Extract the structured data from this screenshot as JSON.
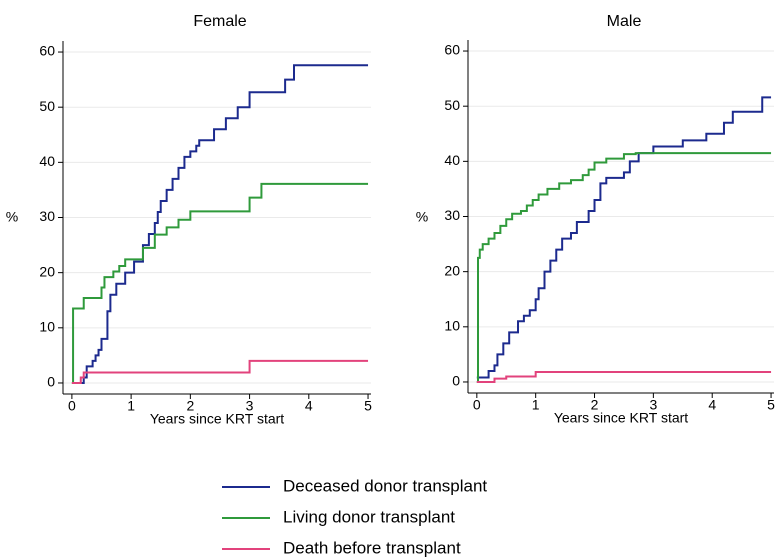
{
  "chart_data": [
    {
      "type": "step",
      "title": "Female",
      "x_label": "Years since KRT start",
      "y_label": "%",
      "xlim": [
        -0.15,
        5.05
      ],
      "ylim": [
        -2,
        62
      ],
      "xticks": [
        0,
        1,
        2,
        3,
        4,
        5
      ],
      "yticks": [
        0,
        10,
        20,
        30,
        40,
        50,
        60
      ],
      "grid": true,
      "series": [
        {
          "name": "Deceased donor transplant",
          "color": "#1c2a8e",
          "x": [
            0.15,
            0.2,
            0.25,
            0.35,
            0.4,
            0.45,
            0.5,
            0.6,
            0.65,
            0.75,
            0.9,
            1.05,
            1.2,
            1.3,
            1.4,
            1.45,
            1.5,
            1.6,
            1.7,
            1.8,
            1.9,
            2.0,
            2.1,
            2.15,
            2.4,
            2.6,
            2.8,
            3.0,
            3.6,
            3.75,
            5
          ],
          "values": [
            0,
            1,
            3,
            4,
            5,
            6,
            8,
            13,
            16,
            18,
            20,
            22,
            25,
            27,
            29,
            31,
            33,
            35,
            37,
            39,
            41,
            42,
            43,
            44,
            46,
            48,
            50,
            52.7,
            55,
            57.6,
            57.6
          ]
        },
        {
          "name": "Living donor transplant",
          "color": "#2f9a3b",
          "x": [
            0,
            0.02,
            0.2,
            0.5,
            0.55,
            0.7,
            0.8,
            0.9,
            1.2,
            1.4,
            1.6,
            1.8,
            2.0,
            3.0,
            3.2,
            5
          ],
          "values": [
            0,
            13.5,
            15.4,
            17.3,
            19.2,
            20.2,
            21.2,
            22.4,
            24.5,
            26.9,
            28.2,
            29.6,
            31.1,
            33.6,
            36.1,
            36.1
          ]
        },
        {
          "name": "Death before transplant",
          "color": "#e2437c",
          "x": [
            0,
            0.15,
            0.2,
            3.0,
            5
          ],
          "values": [
            0,
            1,
            1.9,
            4,
            4
          ]
        }
      ]
    },
    {
      "type": "step",
      "title": "Male",
      "x_label": "Years since KRT start",
      "y_label": "%",
      "xlim": [
        -0.15,
        5.05
      ],
      "ylim": [
        -2,
        62
      ],
      "xticks": [
        0,
        1,
        2,
        3,
        4,
        5
      ],
      "yticks": [
        0,
        10,
        20,
        30,
        40,
        50,
        60
      ],
      "grid": true,
      "series": [
        {
          "color": "#1c2a8e",
          "x": [
            0,
            0.1,
            0.2,
            0.3,
            0.35,
            0.45,
            0.55,
            0.7,
            0.8,
            0.9,
            1.0,
            1.05,
            1.15,
            1.25,
            1.35,
            1.45,
            1.6,
            1.7,
            1.9,
            2.0,
            2.1,
            2.2,
            2.5,
            2.6,
            2.75,
            3.0,
            3.5,
            3.9,
            4.2,
            4.35,
            4.85,
            5
          ],
          "values": [
            0.8,
            0.8,
            2,
            3,
            5,
            7,
            9,
            11,
            12,
            13,
            15,
            17,
            20,
            22,
            24,
            26,
            27,
            29,
            31,
            33,
            36,
            37,
            38,
            40,
            41.5,
            42.7,
            43.8,
            45,
            47,
            49,
            51.6,
            51.6
          ]
        },
        {
          "color": "#2f9a3b",
          "x": [
            0,
            0.02,
            0.05,
            0.1,
            0.2,
            0.3,
            0.4,
            0.5,
            0.6,
            0.75,
            0.85,
            0.95,
            1.05,
            1.2,
            1.4,
            1.6,
            1.8,
            1.9,
            2.0,
            2.2,
            2.5,
            2.7,
            5
          ],
          "values": [
            0,
            22.5,
            24,
            25,
            26,
            27,
            28.3,
            29.5,
            30.5,
            31,
            32,
            33,
            34,
            35,
            36,
            36.6,
            37.5,
            38.5,
            39.8,
            40.5,
            41.3,
            41.5,
            41.5
          ]
        },
        {
          "color": "#e2437c",
          "x": [
            0,
            0.3,
            0.5,
            1.0,
            5
          ],
          "values": [
            0,
            0.6,
            1,
            1.8,
            1.8
          ]
        }
      ]
    }
  ]
}
